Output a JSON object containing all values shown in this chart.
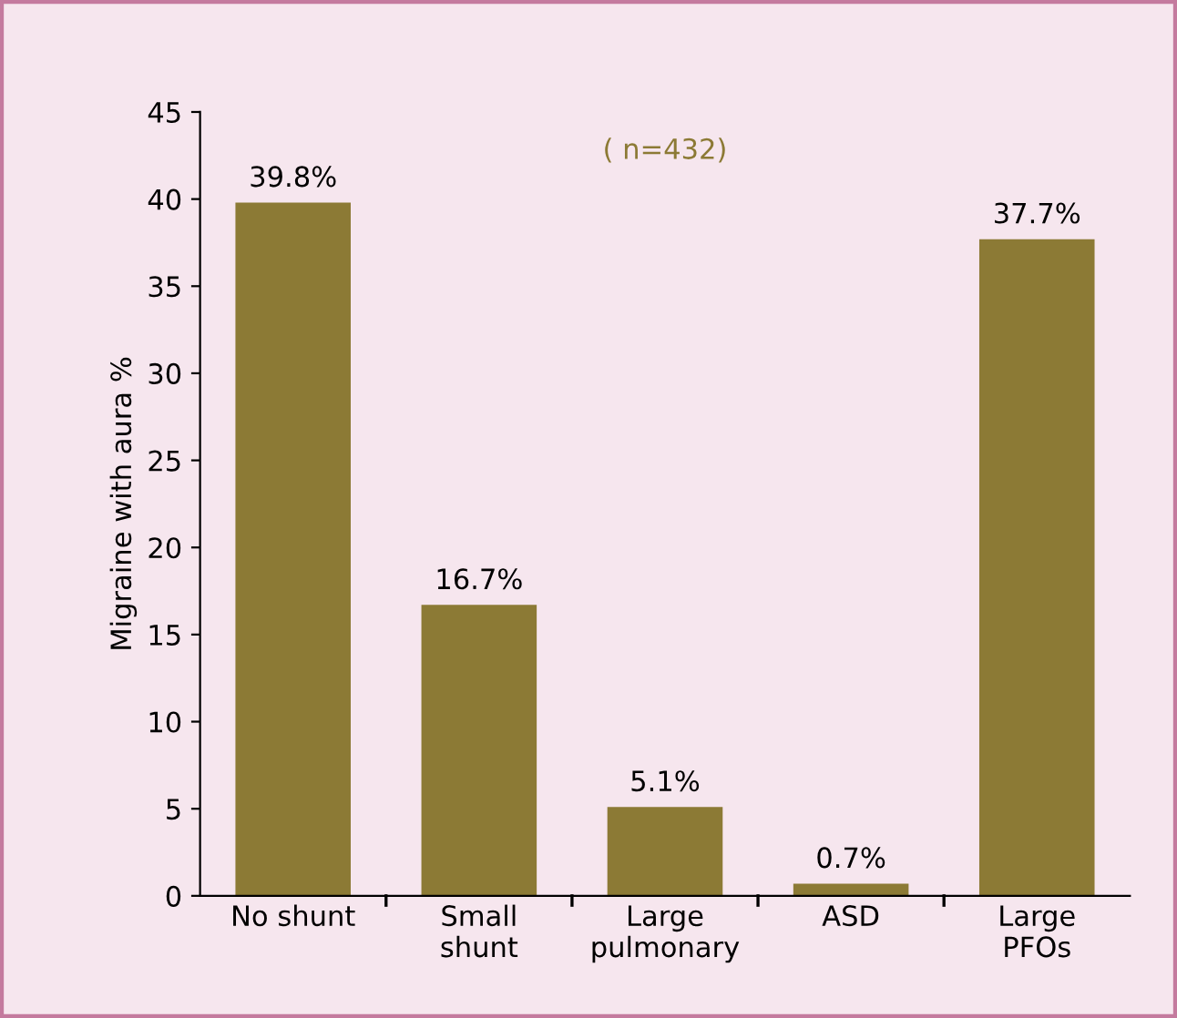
{
  "chart_data": {
    "type": "bar",
    "ylabel": "Migraine with aura %",
    "annotations": [
      "( n=432)"
    ],
    "categories": [
      "No shunt",
      "Small\nshunt",
      "Large\npulmonary",
      "ASD",
      "Large\nPFOs"
    ],
    "values": [
      39.8,
      16.7,
      5.1,
      0.7,
      37.7
    ],
    "value_labels": [
      "39.8%",
      "16.7%",
      "5.1%",
      "0.7%",
      "37.7%"
    ],
    "color": "#8c7a35",
    "ylim": [
      0,
      45
    ],
    "yticks": [
      0,
      5,
      10,
      15,
      20,
      25,
      30,
      35,
      40,
      45
    ],
    "grid": false
  }
}
